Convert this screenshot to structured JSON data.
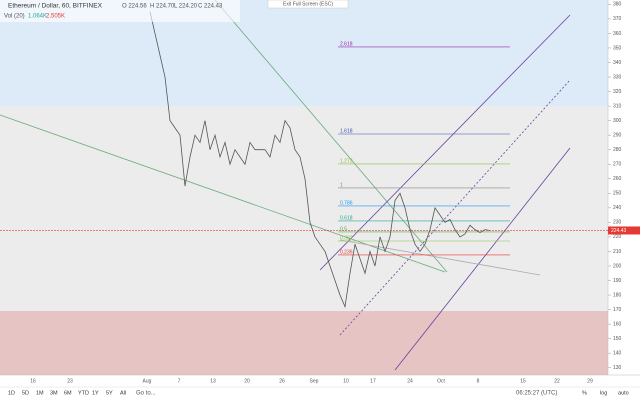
{
  "chart_data": {
    "type": "line",
    "title": "Ethereum / Dollar, 60, BITFINEX",
    "ohlc_header": {
      "open": "O 224.56",
      "high": "H 224.70",
      "low": "L 224.20",
      "close": "C 224.43"
    },
    "volume_header": {
      "name": "Vol (20)",
      "v1": "1.064K",
      "v2": "2.505K"
    },
    "exit_button": "Exit Full Screen (ESC)",
    "last_price": 224.43,
    "series": [
      {
        "name": "ETHUSD",
        "color": "#555555",
        "values": [
          375,
          360,
          345,
          330,
          300,
          295,
          290,
          255,
          275,
          290,
          285,
          300,
          280,
          290,
          275,
          285,
          270,
          280,
          275,
          270,
          285,
          280,
          280,
          280,
          275,
          290,
          285,
          300,
          295,
          280,
          275,
          260,
          230,
          220,
          215,
          210,
          200,
          190,
          180,
          172,
          195,
          215,
          205,
          195,
          210,
          200,
          220,
          210,
          220,
          245,
          250,
          240,
          225,
          215,
          210,
          215,
          225,
          240,
          235,
          230,
          232,
          225,
          220,
          222,
          228,
          225,
          223,
          225,
          224.43
        ]
      }
    ],
    "fib_levels": [
      {
        "label": "2.618",
        "value": 350.7,
        "color": "#9c27b0"
      },
      {
        "label": "1.618",
        "value": 290.8,
        "color": "#3f51b5"
      },
      {
        "label": "1.272",
        "value": 270.2,
        "color": "#8bc34a"
      },
      {
        "label": "1",
        "value": 253.7,
        "color": "#888888"
      },
      {
        "label": "0.786",
        "value": 241.3,
        "color": "#2196f3"
      },
      {
        "label": "0.618",
        "value": 231,
        "color": "#26a69a"
      },
      {
        "label": "0.5",
        "value": 223.4,
        "color": "#4caf50"
      },
      {
        "label": "0.382",
        "value": 217.2,
        "color": "#8bc34a"
      },
      {
        "label": "0.236",
        "value": 207.6,
        "color": "#e53935"
      }
    ],
    "xticks": [
      "16",
      "23",
      "Aug",
      "7",
      "13",
      "20",
      "26",
      "Sep",
      "10",
      "17",
      "24",
      "Oct",
      "8",
      "15",
      "22",
      "29"
    ],
    "ylim": [
      125,
      383
    ],
    "yticks": [
      130,
      140,
      150,
      160,
      170,
      180,
      190,
      200,
      210,
      220,
      230,
      240,
      250,
      260,
      270,
      280,
      290,
      300,
      310,
      320,
      330,
      340,
      350,
      360,
      370,
      380
    ],
    "toolbar": {
      "ranges": [
        "1D",
        "5D",
        "1M",
        "3M",
        "6M",
        "YTD",
        "1Y",
        "5Y",
        "All"
      ],
      "goto": "Go to...",
      "clock": "06:25:27 (UTC)",
      "options": [
        "%",
        "log",
        "auto"
      ]
    }
  }
}
